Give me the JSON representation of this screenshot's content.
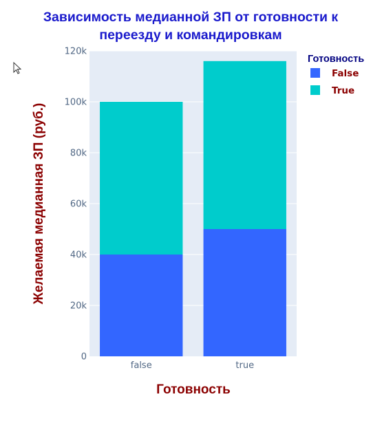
{
  "chart_data": {
    "type": "bar",
    "barmode": "stack",
    "title": "Зависимость медианной ЗП от готовности к переезду и командировкам",
    "title_lines": [
      "Зависимость медианной ЗП от готовности к",
      "переезду и командировкам"
    ],
    "xlabel": "Готовность",
    "ylabel": "Желаемая медианная ЗП (руб.)",
    "categories": [
      "false",
      "true"
    ],
    "series": [
      {
        "name": "False",
        "values": [
          40000,
          50000
        ],
        "color": "#3366ff"
      },
      {
        "name": "True",
        "values": [
          60000,
          66000
        ],
        "color": "#00cccc"
      }
    ],
    "ylim": [
      0,
      120000
    ],
    "yticks": [
      0,
      20000,
      40000,
      60000,
      80000,
      100000,
      120000
    ],
    "ytick_labels": [
      "0",
      "20k",
      "40k",
      "60k",
      "80k",
      "100k",
      "120k"
    ],
    "grid": true,
    "legend": {
      "title": "Готовность",
      "position": "top-right"
    }
  },
  "colors": {
    "title": "#1a1acc",
    "axis_title": "#8b0000",
    "legend_title": "#000080",
    "legend_label": "#8b0000",
    "plot_bg": "#e5ecf6",
    "grid": "#ffffff",
    "tick": "#506784"
  }
}
